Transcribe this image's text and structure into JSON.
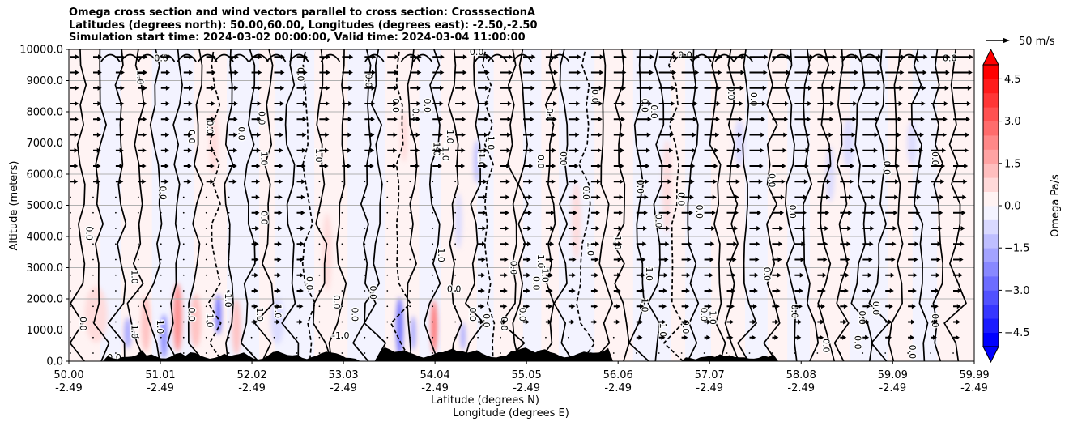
{
  "chart_data": {
    "type": "heatmap",
    "title_lines": [
      "Omega cross section and wind vectors parallel to cross section: CrosssectionA",
      "Latitudes (degrees north): 50.00,60.00, Longitudes (degrees east): -2.50,-2.50",
      "Simulation start time: 2024-03-02 00:00:00, Valid time: 2024-03-04 11:00:00"
    ],
    "ylabel": "Altitude (meters)",
    "xlabel_lines": [
      "Latitude (degrees N)",
      "Longitude (degrees E)"
    ],
    "xlim": [
      50.0,
      59.99
    ],
    "ylim": [
      0,
      10000
    ],
    "x_ticks": [
      {
        "value": 50.0,
        "lat": "50.00",
        "lon": "-2.49"
      },
      {
        "value": 51.01,
        "lat": "51.01",
        "lon": "-2.49"
      },
      {
        "value": 52.02,
        "lat": "52.02",
        "lon": "-2.49"
      },
      {
        "value": 53.03,
        "lat": "53.03",
        "lon": "-2.49"
      },
      {
        "value": 54.04,
        "lat": "54.04",
        "lon": "-2.49"
      },
      {
        "value": 55.05,
        "lat": "55.05",
        "lon": "-2.49"
      },
      {
        "value": 56.06,
        "lat": "56.06",
        "lon": "-2.49"
      },
      {
        "value": 57.07,
        "lat": "57.07",
        "lon": "-2.49"
      },
      {
        "value": 58.08,
        "lat": "58.08",
        "lon": "-2.49"
      },
      {
        "value": 59.09,
        "lat": "59.09",
        "lon": "-2.49"
      },
      {
        "value": 59.99,
        "lat": "59.99",
        "lon": "-2.49"
      }
    ],
    "y_ticks": [
      {
        "value": 0,
        "label": "0.0"
      },
      {
        "value": 1000,
        "label": "1000.0"
      },
      {
        "value": 2000,
        "label": "2000.0"
      },
      {
        "value": 3000,
        "label": "3000.0"
      },
      {
        "value": 4000,
        "label": "4000.0"
      },
      {
        "value": 5000,
        "label": "5000.0"
      },
      {
        "value": 6000,
        "label": "6000.0"
      },
      {
        "value": 7000,
        "label": "7000.0"
      },
      {
        "value": 8000,
        "label": "8000.0"
      },
      {
        "value": 9000,
        "label": "9000.0"
      },
      {
        "value": 10000,
        "label": "10000.0"
      }
    ],
    "grid": "horizontal",
    "colorbar": {
      "label": "Omega Pa/s",
      "min": -5.0,
      "max": 5.0,
      "levels": 20,
      "extend": "both",
      "ticks": [
        {
          "value": 4.5,
          "label": "4.5"
        },
        {
          "value": 3.0,
          "label": "3.0"
        },
        {
          "value": 1.5,
          "label": "1.5"
        },
        {
          "value": 0.0,
          "label": "0.0"
        },
        {
          "value": -1.5,
          "label": "−1.5"
        },
        {
          "value": -3.0,
          "label": "−3.0"
        },
        {
          "value": -4.5,
          "label": "−4.5"
        }
      ],
      "colors": [
        "#0000ff",
        "#1b1bff",
        "#3636ff",
        "#5151ff",
        "#6c6cff",
        "#8888ff",
        "#a3a3ff",
        "#bebeff",
        "#d9d9ff",
        "#f3f3ff",
        "#fff3f3",
        "#ffd9d9",
        "#ffbebe",
        "#ffa3a3",
        "#ff8888",
        "#ff6c6c",
        "#ff5151",
        "#ff3636",
        "#ff1b1b",
        "#ff0000"
      ]
    },
    "quiver_key": {
      "label": "50 m/s",
      "speed": 50
    },
    "omega_anomalies": [
      {
        "x": 50.3,
        "y": 1500,
        "w": 0.25,
        "h": 1800,
        "value": 0.8
      },
      {
        "x": 50.65,
        "y": 900,
        "w": 0.08,
        "h": 1000,
        "value": -2.0
      },
      {
        "x": 50.85,
        "y": 1200,
        "w": 0.1,
        "h": 1800,
        "value": 1.4
      },
      {
        "x": 51.05,
        "y": 800,
        "w": 0.08,
        "h": 1400,
        "value": -2.4
      },
      {
        "x": 51.2,
        "y": 1400,
        "w": 0.1,
        "h": 2200,
        "value": 2.2
      },
      {
        "x": 51.4,
        "y": 1300,
        "w": 0.12,
        "h": 1700,
        "value": 1.0
      },
      {
        "x": 51.65,
        "y": 1500,
        "w": 0.07,
        "h": 1300,
        "value": -2.8
      },
      {
        "x": 51.85,
        "y": 1100,
        "w": 0.1,
        "h": 1800,
        "value": 1.0
      },
      {
        "x": 52.3,
        "y": 1300,
        "w": 0.15,
        "h": 1500,
        "value": -0.8
      },
      {
        "x": 53.65,
        "y": 1100,
        "w": 0.08,
        "h": 1900,
        "value": -3.0
      },
      {
        "x": 53.8,
        "y": 900,
        "w": 0.06,
        "h": 1100,
        "value": -2.0
      },
      {
        "x": 54.03,
        "y": 1100,
        "w": 0.07,
        "h": 1700,
        "value": 2.6
      },
      {
        "x": 54.35,
        "y": 800,
        "w": 0.05,
        "h": 900,
        "value": -1.6
      },
      {
        "x": 52.85,
        "y": 3500,
        "w": 0.1,
        "h": 2500,
        "value": 0.8
      },
      {
        "x": 54.5,
        "y": 6400,
        "w": 0.07,
        "h": 1400,
        "value": -1.2
      },
      {
        "x": 54.3,
        "y": 4500,
        "w": 0.08,
        "h": 1800,
        "value": -0.8
      },
      {
        "x": 55.6,
        "y": 4500,
        "w": 0.1,
        "h": 2500,
        "value": 0.8
      },
      {
        "x": 56.6,
        "y": 5600,
        "w": 0.1,
        "h": 3000,
        "value": 0.8
      },
      {
        "x": 57.4,
        "y": 7000,
        "w": 0.12,
        "h": 1500,
        "value": -0.8
      },
      {
        "x": 58.4,
        "y": 6000,
        "w": 0.1,
        "h": 1800,
        "value": -0.6
      },
      {
        "x": 58.6,
        "y": 7000,
        "w": 0.12,
        "h": 1600,
        "value": -0.8
      },
      {
        "x": 59.3,
        "y": 7000,
        "w": 0.1,
        "h": 1400,
        "value": -0.6
      },
      {
        "x": 51.6,
        "y": 7000,
        "w": 0.1,
        "h": 2000,
        "value": 0.6
      },
      {
        "x": 53.7,
        "y": 7200,
        "w": 0.08,
        "h": 1600,
        "value": 0.6
      }
    ],
    "contour_labels": [
      {
        "x": 51.02,
        "y": 9700,
        "text": "0.0",
        "rot": 0
      },
      {
        "x": 50.78,
        "y": 9100,
        "text": "1.0",
        "rot": 90
      },
      {
        "x": 51.35,
        "y": 7200,
        "text": "0.0",
        "rot": 90
      },
      {
        "x": 51.55,
        "y": 7500,
        "text": "0.0",
        "rot": 90
      },
      {
        "x": 51.9,
        "y": 7300,
        "text": "0.0",
        "rot": 90
      },
      {
        "x": 51.03,
        "y": 5400,
        "text": "0.0",
        "rot": 90
      },
      {
        "x": 50.22,
        "y": 4100,
        "text": "0.0",
        "rot": 90
      },
      {
        "x": 50.72,
        "y": 2700,
        "text": "1.0",
        "rot": 90
      },
      {
        "x": 52.12,
        "y": 7800,
        "text": "0.0",
        "rot": 90
      },
      {
        "x": 52.55,
        "y": 9200,
        "text": "0.0",
        "rot": 90
      },
      {
        "x": 52.15,
        "y": 6500,
        "text": "1.0",
        "rot": 90
      },
      {
        "x": 52.75,
        "y": 6600,
        "text": "1.0",
        "rot": 90
      },
      {
        "x": 52.15,
        "y": 4600,
        "text": "0.0",
        "rot": 90
      },
      {
        "x": 53.3,
        "y": 9000,
        "text": "0.0",
        "rot": 90
      },
      {
        "x": 53.6,
        "y": 8200,
        "text": "0.0",
        "rot": 90
      },
      {
        "x": 53.82,
        "y": 7900,
        "text": "0.0",
        "rot": 90
      },
      {
        "x": 54.5,
        "y": 9900,
        "text": "0.0",
        "rot": 0
      },
      {
        "x": 54.05,
        "y": 6800,
        "text": "1.0",
        "rot": 90
      },
      {
        "x": 54.2,
        "y": 7200,
        "text": "1.0",
        "rot": 90
      },
      {
        "x": 54.65,
        "y": 7000,
        "text": "1.0",
        "rot": 90
      },
      {
        "x": 53.95,
        "y": 8200,
        "text": "0.0",
        "rot": 90
      },
      {
        "x": 55.3,
        "y": 7900,
        "text": "0.0",
        "rot": 90
      },
      {
        "x": 55.2,
        "y": 6400,
        "text": "0.0",
        "rot": 90
      },
      {
        "x": 55.8,
        "y": 8500,
        "text": "0.0",
        "rot": 90
      },
      {
        "x": 56.35,
        "y": 8200,
        "text": "0.0",
        "rot": 90
      },
      {
        "x": 55.45,
        "y": 6500,
        "text": "0.0",
        "rot": 90
      },
      {
        "x": 55.7,
        "y": 5400,
        "text": "0.0",
        "rot": 90
      },
      {
        "x": 56.3,
        "y": 5600,
        "text": "0.0",
        "rot": 90
      },
      {
        "x": 56.5,
        "y": 4500,
        "text": "0.0",
        "rot": 90
      },
      {
        "x": 55.2,
        "y": 3200,
        "text": "1.0",
        "rot": 90
      },
      {
        "x": 54.1,
        "y": 3400,
        "text": "1.0",
        "rot": 90
      },
      {
        "x": 55.75,
        "y": 3600,
        "text": "1.0",
        "rot": 90
      },
      {
        "x": 54.9,
        "y": 3000,
        "text": "0.0",
        "rot": 90
      },
      {
        "x": 55.15,
        "y": 2500,
        "text": "0.0",
        "rot": 90
      },
      {
        "x": 54.25,
        "y": 2300,
        "text": "0.0",
        "rot": 0
      },
      {
        "x": 53.35,
        "y": 2200,
        "text": "0.0",
        "rot": 90
      },
      {
        "x": 52.95,
        "y": 1900,
        "text": "0.0",
        "rot": 90
      },
      {
        "x": 53.15,
        "y": 1500,
        "text": "0.0",
        "rot": 90
      },
      {
        "x": 52.65,
        "y": 2500,
        "text": "0.0",
        "rot": 90
      },
      {
        "x": 52.1,
        "y": 1500,
        "text": "1.0",
        "rot": 90
      },
      {
        "x": 52.3,
        "y": 1600,
        "text": "1.0",
        "rot": 90
      },
      {
        "x": 51.35,
        "y": 1500,
        "text": "0.0",
        "rot": 90
      },
      {
        "x": 51.0,
        "y": 1100,
        "text": "1.0",
        "rot": 90
      },
      {
        "x": 51.55,
        "y": 1300,
        "text": "1.0",
        "rot": 90
      },
      {
        "x": 50.15,
        "y": 1200,
        "text": "0.0",
        "rot": 90
      },
      {
        "x": 50.5,
        "y": 100,
        "text": "0.0",
        "rot": 0
      },
      {
        "x": 54.45,
        "y": 1500,
        "text": "0.0",
        "rot": 90
      },
      {
        "x": 54.6,
        "y": 1300,
        "text": "0.0",
        "rot": 90
      },
      {
        "x": 55.0,
        "y": 1500,
        "text": "0.0",
        "rot": 90
      },
      {
        "x": 54.8,
        "y": 1200,
        "text": "0.0",
        "rot": 90
      },
      {
        "x": 54.55,
        "y": 6500,
        "text": "-1.0",
        "rot": 90
      },
      {
        "x": 54.15,
        "y": 6700,
        "text": "-1.0",
        "rot": 90
      },
      {
        "x": 53.0,
        "y": 800,
        "text": "-1.0",
        "rot": 0
      },
      {
        "x": 55.25,
        "y": 2800,
        "text": "-1.0",
        "rot": 90
      },
      {
        "x": 51.75,
        "y": 2000,
        "text": "-1.0",
        "rot": 90
      },
      {
        "x": 50.72,
        "y": 1000,
        "text": "-1.0",
        "rot": 90
      },
      {
        "x": 56.05,
        "y": 3800,
        "text": "1.0",
        "rot": 90
      },
      {
        "x": 56.4,
        "y": 2800,
        "text": "1.0",
        "rot": 90
      },
      {
        "x": 56.35,
        "y": 1800,
        "text": "1.0",
        "rot": 90
      },
      {
        "x": 56.55,
        "y": 1000,
        "text": "1.0",
        "rot": 90
      },
      {
        "x": 57.0,
        "y": 1500,
        "text": "0.0",
        "rot": 90
      },
      {
        "x": 57.1,
        "y": 1400,
        "text": "1.0",
        "rot": 90
      },
      {
        "x": 56.8,
        "y": 1100,
        "text": "0.0",
        "rot": 90
      },
      {
        "x": 56.45,
        "y": 8000,
        "text": "0.0",
        "rot": 90
      },
      {
        "x": 56.75,
        "y": 5200,
        "text": "0.0",
        "rot": 90
      },
      {
        "x": 56.95,
        "y": 4800,
        "text": "0.0",
        "rot": 90
      },
      {
        "x": 57.75,
        "y": 5800,
        "text": "0.0",
        "rot": 90
      },
      {
        "x": 57.55,
        "y": 8400,
        "text": "0.0",
        "rot": 90
      },
      {
        "x": 57.3,
        "y": 8600,
        "text": "0.0",
        "rot": 90
      },
      {
        "x": 57.7,
        "y": 2800,
        "text": "0.0",
        "rot": 90
      },
      {
        "x": 57.98,
        "y": 4800,
        "text": "0.0",
        "rot": 90
      },
      {
        "x": 58.0,
        "y": 1600,
        "text": "0.0",
        "rot": 90
      },
      {
        "x": 58.35,
        "y": 500,
        "text": "0.0",
        "rot": 90
      },
      {
        "x": 58.9,
        "y": 1700,
        "text": "0.0",
        "rot": 90
      },
      {
        "x": 58.75,
        "y": 1400,
        "text": "0.0",
        "rot": 90
      },
      {
        "x": 59.02,
        "y": 6200,
        "text": "0.0",
        "rot": 90
      },
      {
        "x": 59.55,
        "y": 1300,
        "text": "0.0",
        "rot": 90
      },
      {
        "x": 58.7,
        "y": 600,
        "text": "0.0",
        "rot": 90
      },
      {
        "x": 59.3,
        "y": 300,
        "text": "0.0",
        "rot": 90
      },
      {
        "x": 59.55,
        "y": 6500,
        "text": "0.0",
        "rot": 90
      },
      {
        "x": 59.72,
        "y": 9700,
        "text": "0.0",
        "rot": 0
      },
      {
        "x": 56.8,
        "y": 9800,
        "text": "0.0",
        "rot": 0
      }
    ]
  }
}
